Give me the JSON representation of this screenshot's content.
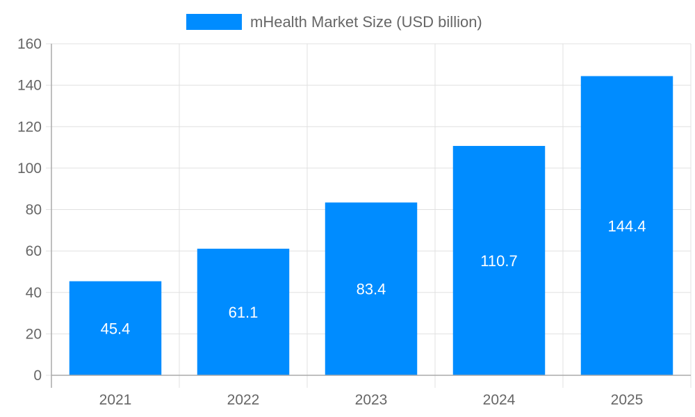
{
  "chart_data": {
    "type": "bar",
    "title": "",
    "xlabel": "",
    "ylabel": "",
    "categories": [
      "2021",
      "2022",
      "2023",
      "2024",
      "2025"
    ],
    "series": [
      {
        "name": "mHealth Market Size (USD billion)",
        "values": [
          45.4,
          61.1,
          83.4,
          110.7,
          144.4
        ],
        "color": "#008cff"
      }
    ],
    "data_labels": [
      "45.4",
      "61.1",
      "83.4",
      "110.7",
      "144.4"
    ],
    "ylim": [
      0,
      160
    ],
    "yticks": [
      "0",
      "20",
      "40",
      "60",
      "80",
      "100",
      "120",
      "140",
      "160"
    ],
    "grid": true,
    "legend_position": "top"
  }
}
